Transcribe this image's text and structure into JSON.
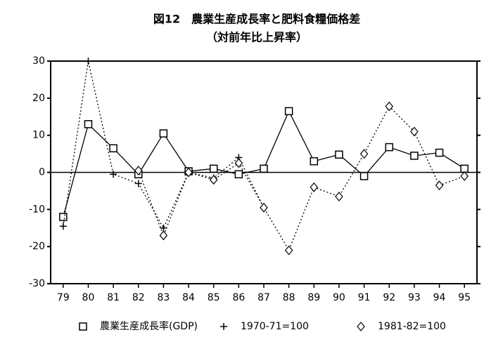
{
  "chart_data": {
    "type": "line",
    "title": "図12　農業生産成長率と肥料食糧価格差",
    "subtitle": "（対前年比上昇率）",
    "categories": [
      "79",
      "80",
      "81",
      "82",
      "83",
      "84",
      "85",
      "86",
      "87",
      "88",
      "89",
      "90",
      "91",
      "92",
      "93",
      "94",
      "95"
    ],
    "series": [
      {
        "name": "農業生産成長率(GDP)",
        "color": "#000000",
        "line_style": "solid",
        "marker": "square",
        "values": [
          -12,
          13,
          6.5,
          -0.5,
          10.5,
          0.3,
          1,
          -0.5,
          1,
          16.5,
          3,
          4.8,
          -1,
          6.8,
          4.5,
          5.3,
          1
        ]
      },
      {
        "name": "1970-71=100",
        "color": "#000000",
        "line_style": "dotted",
        "marker": "plus",
        "values": [
          -14.5,
          30,
          -0.5,
          -3,
          -15,
          0,
          -1.5,
          4,
          -9.5,
          null,
          null,
          null,
          null,
          null,
          null,
          null,
          null
        ]
      },
      {
        "name": "1981-82=100",
        "color": "#000000",
        "line_style": "dotted",
        "marker": "diamond",
        "values": [
          null,
          null,
          null,
          0.5,
          -17,
          0,
          -2,
          2.5,
          -9.5,
          -21,
          -4,
          -6.5,
          5,
          17.8,
          11,
          -3.5,
          -1
        ]
      }
    ],
    "ylim": [
      -30,
      30
    ],
    "yticks": [
      -30,
      -20,
      -10,
      0,
      10,
      20,
      30
    ]
  }
}
